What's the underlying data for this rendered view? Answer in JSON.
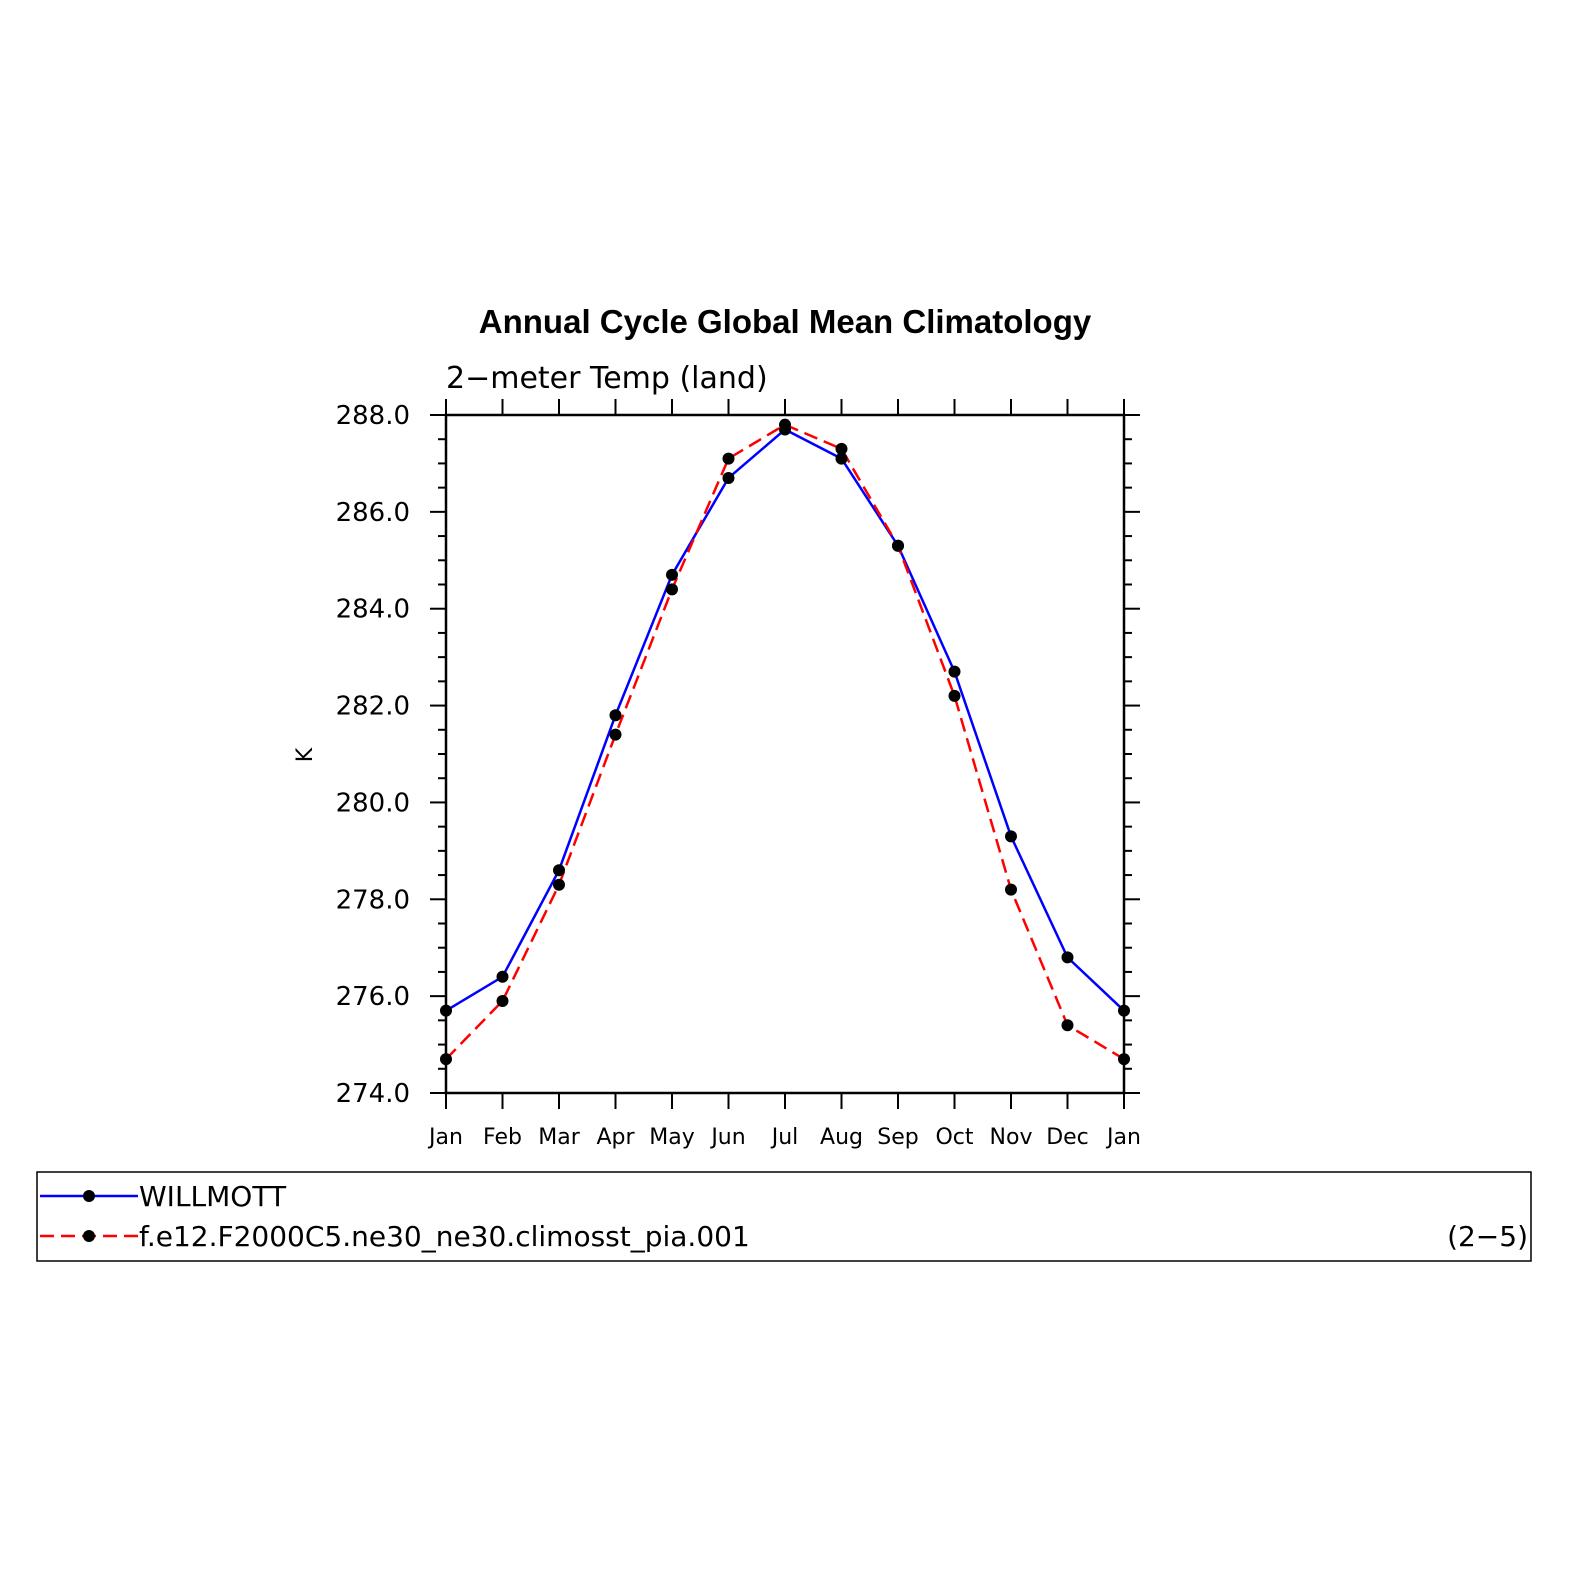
{
  "chart_data": {
    "type": "line",
    "title": "Annual Cycle Global Mean Climatology",
    "subtitle": "2−meter Temp (land)",
    "xlabel": "",
    "ylabel": "K",
    "categories": [
      "Jan",
      "Feb",
      "Mar",
      "Apr",
      "May",
      "Jun",
      "Jul",
      "Aug",
      "Sep",
      "Oct",
      "Nov",
      "Dec",
      "Jan"
    ],
    "ylim": [
      274.0,
      288.0
    ],
    "yticks": [
      "274.0",
      "276.0",
      "278.0",
      "280.0",
      "282.0",
      "284.0",
      "286.0",
      "288.0"
    ],
    "grid": false,
    "legend_placement": "bottom",
    "series": [
      {
        "name": "WILLMOTT",
        "color": "#0000ff",
        "dash": "solid",
        "values": [
          275.7,
          276.4,
          278.6,
          281.8,
          284.7,
          286.7,
          287.7,
          287.1,
          285.3,
          282.7,
          279.3,
          276.8,
          275.7
        ]
      },
      {
        "name": "f.e12.F2000C5.ne30_ne30.climosst_pia.001",
        "color": "#ff0000",
        "dash": "dashed",
        "values": [
          274.7,
          275.9,
          278.3,
          281.4,
          284.4,
          287.1,
          287.8,
          287.3,
          285.3,
          282.2,
          278.2,
          275.4,
          274.7
        ]
      }
    ],
    "panel_label": "(2−5)"
  }
}
